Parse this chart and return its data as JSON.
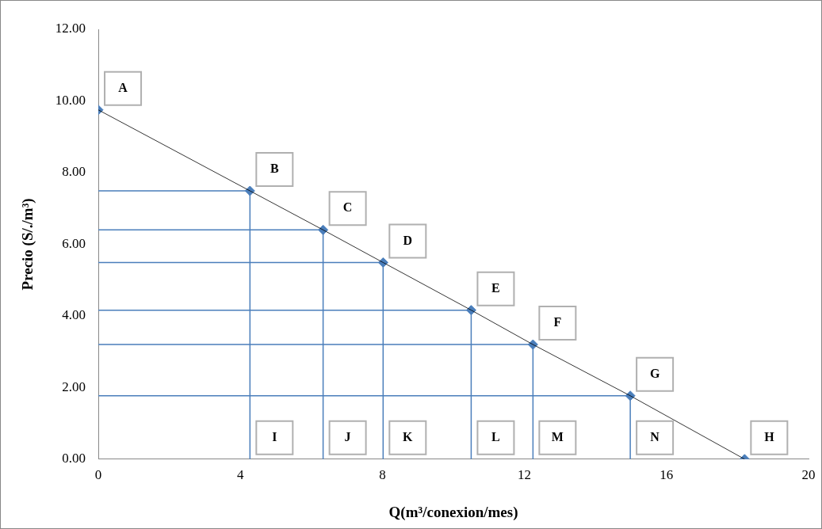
{
  "chart_data": {
    "type": "line",
    "xlabel": "Q(m³/conexion/mes)",
    "ylabel": "Precio (S/./m³)",
    "xlim": [
      0,
      20
    ],
    "xticks": [
      0,
      4,
      8,
      12,
      16,
      20
    ],
    "ylim": [
      0,
      12
    ],
    "yticks": [
      {
        "value": 0,
        "label": "0.00"
      },
      {
        "value": 2,
        "label": "2.00"
      },
      {
        "value": 4,
        "label": "4.00"
      },
      {
        "value": 6,
        "label": "6.00"
      },
      {
        "value": 8,
        "label": "8.00"
      },
      {
        "value": 10,
        "label": "10.00"
      },
      {
        "value": 12,
        "label": "12.00"
      }
    ],
    "grid": false,
    "legend": false,
    "series": [
      {
        "color": "#000000",
        "marker": "none",
        "x": [
          0,
          4.27,
          6.33,
          8.02,
          10.5,
          12.24,
          14.98,
          18.2
        ],
        "values": [
          9.75,
          7.49,
          6.4,
          5.49,
          4.16,
          3.2,
          1.77,
          0
        ]
      },
      {
        "color": "#4a7ebb",
        "marker": "none",
        "x": [
          0,
          4.27,
          4.27
        ],
        "values": [
          7.49,
          7.49,
          0
        ]
      },
      {
        "color": "#4a7ebb",
        "marker": "none",
        "x": [
          0,
          6.33,
          6.33
        ],
        "values": [
          6.4,
          6.4,
          0
        ]
      },
      {
        "color": "#4a7ebb",
        "marker": "none",
        "x": [
          0,
          8.02,
          8.02
        ],
        "values": [
          5.49,
          5.49,
          0
        ]
      },
      {
        "color": "#4a7ebb",
        "marker": "none",
        "x": [
          0,
          10.5,
          10.5
        ],
        "values": [
          4.16,
          4.16,
          0
        ]
      },
      {
        "color": "#4a7ebb",
        "marker": "none",
        "x": [
          0,
          12.24,
          12.24
        ],
        "values": [
          3.2,
          3.2,
          0
        ]
      },
      {
        "color": "#4a7ebb",
        "marker": "none",
        "x": [
          0,
          14.98,
          14.98
        ],
        "values": [
          1.77,
          1.77,
          0
        ]
      },
      {
        "type": "scatter",
        "color": "#4a7ebb",
        "marker": "diamond",
        "x": [
          0,
          4.27,
          6.33,
          8.02,
          10.5,
          12.24,
          14.98,
          18.2
        ],
        "values": [
          9.75,
          7.49,
          6.4,
          5.49,
          4.16,
          3.2,
          1.77,
          0
        ]
      }
    ],
    "annotations": [
      {
        "text": "A",
        "x": 0,
        "y": 9.75
      },
      {
        "text": "B",
        "x": 4.27,
        "y": 7.49
      },
      {
        "text": "C",
        "x": 6.33,
        "y": 6.4
      },
      {
        "text": "D",
        "x": 8.02,
        "y": 5.49
      },
      {
        "text": "E",
        "x": 10.5,
        "y": 4.16
      },
      {
        "text": "F",
        "x": 12.24,
        "y": 3.2
      },
      {
        "text": "G",
        "x": 14.98,
        "y": 1.77
      },
      {
        "text": "H",
        "x": 18.2,
        "y": 0
      },
      {
        "text": "I",
        "x": 4.27,
        "y": 0
      },
      {
        "text": "J",
        "x": 6.33,
        "y": 0
      },
      {
        "text": "K",
        "x": 8.02,
        "y": 0
      },
      {
        "text": "L",
        "x": 10.5,
        "y": 0
      },
      {
        "text": "M",
        "x": 12.24,
        "y": 0
      },
      {
        "text": "N",
        "x": 14.98,
        "y": 0
      }
    ]
  }
}
